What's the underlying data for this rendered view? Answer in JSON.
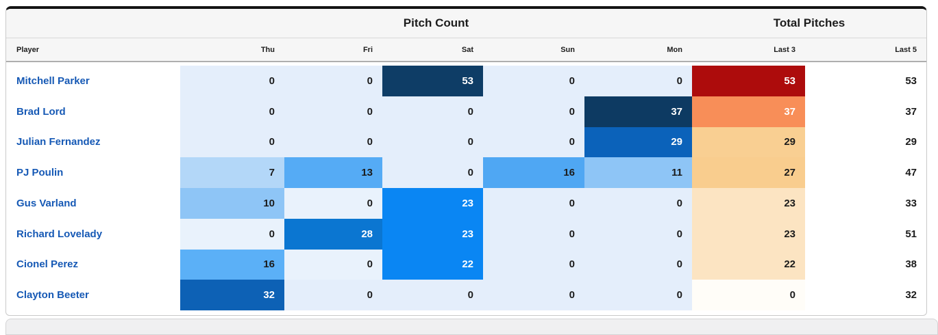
{
  "table": {
    "group_headers": {
      "pitch_count": "Pitch Count",
      "total_pitches": "Total Pitches"
    },
    "columns": [
      "Player",
      "Thu",
      "Fri",
      "Sat",
      "Sun",
      "Mon",
      "Last 3",
      "Last 5"
    ],
    "colors": {
      "zero_blue": "#e4eefb",
      "dark_navy": "#0d3c64",
      "bright_blue": "#0a86f3",
      "dark_red": "#ad0c0c",
      "orange": "#f88e58",
      "peach": "#f9cf92",
      "light_peach": "#fce4c2",
      "near_white": "#fffdf8",
      "link_blue": "#1659b5"
    },
    "rows": [
      {
        "player": "Mitchell Parker",
        "cells": [
          {
            "v": "0",
            "bg": "#e4eefb",
            "fg": "#1b1b1b"
          },
          {
            "v": "0",
            "bg": "#e4eefb",
            "fg": "#1b1b1b"
          },
          {
            "v": "53",
            "bg": "#0e3d66",
            "fg": "#ffffff"
          },
          {
            "v": "0",
            "bg": "#e4eefb",
            "fg": "#1b1b1b"
          },
          {
            "v": "0",
            "bg": "#e4eefb",
            "fg": "#1b1b1b"
          },
          {
            "v": "53",
            "bg": "#ad0c0c",
            "fg": "#ffffff"
          },
          {
            "v": "53",
            "bg": "transparent",
            "fg": "#1b1b1b"
          }
        ]
      },
      {
        "player": "Brad Lord",
        "cells": [
          {
            "v": "0",
            "bg": "#e4eefb",
            "fg": "#1b1b1b"
          },
          {
            "v": "0",
            "bg": "#e4eefb",
            "fg": "#1b1b1b"
          },
          {
            "v": "0",
            "bg": "#e4eefb",
            "fg": "#1b1b1b"
          },
          {
            "v": "0",
            "bg": "#e4eefb",
            "fg": "#1b1b1b"
          },
          {
            "v": "37",
            "bg": "#0d3a62",
            "fg": "#ffffff"
          },
          {
            "v": "37",
            "bg": "#f88e58",
            "fg": "#ffffff"
          },
          {
            "v": "37",
            "bg": "transparent",
            "fg": "#1b1b1b"
          }
        ]
      },
      {
        "player": "Julian Fernandez",
        "cells": [
          {
            "v": "0",
            "bg": "#e4eefb",
            "fg": "#1b1b1b"
          },
          {
            "v": "0",
            "bg": "#e4eefb",
            "fg": "#1b1b1b"
          },
          {
            "v": "0",
            "bg": "#e4eefb",
            "fg": "#1b1b1b"
          },
          {
            "v": "0",
            "bg": "#e4eefb",
            "fg": "#1b1b1b"
          },
          {
            "v": "29",
            "bg": "#0b62ba",
            "fg": "#ffffff"
          },
          {
            "v": "29",
            "bg": "#f9cf92",
            "fg": "#1b1b1b"
          },
          {
            "v": "29",
            "bg": "transparent",
            "fg": "#1b1b1b"
          }
        ]
      },
      {
        "player": "PJ Poulin",
        "cells": [
          {
            "v": "7",
            "bg": "#b3d7f8",
            "fg": "#1b1b1b"
          },
          {
            "v": "13",
            "bg": "#55abf5",
            "fg": "#1b1b1b"
          },
          {
            "v": "0",
            "bg": "#e4eefb",
            "fg": "#1b1b1b"
          },
          {
            "v": "16",
            "bg": "#4fa7f3",
            "fg": "#1b1b1b"
          },
          {
            "v": "11",
            "bg": "#8ec5f6",
            "fg": "#1b1b1b"
          },
          {
            "v": "27",
            "bg": "#f9cd8e",
            "fg": "#1b1b1b"
          },
          {
            "v": "47",
            "bg": "transparent",
            "fg": "#1b1b1b"
          }
        ]
      },
      {
        "player": "Gus Varland",
        "cells": [
          {
            "v": "10",
            "bg": "#8ec5f6",
            "fg": "#1b1b1b"
          },
          {
            "v": "0",
            "bg": "#e9f2fc",
            "fg": "#1b1b1b"
          },
          {
            "v": "23",
            "bg": "#0a86f3",
            "fg": "#ffffff"
          },
          {
            "v": "0",
            "bg": "#e4eefb",
            "fg": "#1b1b1b"
          },
          {
            "v": "0",
            "bg": "#e4eefb",
            "fg": "#1b1b1b"
          },
          {
            "v": "23",
            "bg": "#fce4c2",
            "fg": "#1b1b1b"
          },
          {
            "v": "33",
            "bg": "transparent",
            "fg": "#1b1b1b"
          }
        ]
      },
      {
        "player": "Richard Lovelady",
        "cells": [
          {
            "v": "0",
            "bg": "#e9f2fc",
            "fg": "#1b1b1b"
          },
          {
            "v": "28",
            "bg": "#0b76d1",
            "fg": "#ffffff"
          },
          {
            "v": "23",
            "bg": "#0a86f3",
            "fg": "#ffffff"
          },
          {
            "v": "0",
            "bg": "#e4eefb",
            "fg": "#1b1b1b"
          },
          {
            "v": "0",
            "bg": "#e4eefb",
            "fg": "#1b1b1b"
          },
          {
            "v": "23",
            "bg": "#fce4c2",
            "fg": "#1b1b1b"
          },
          {
            "v": "51",
            "bg": "transparent",
            "fg": "#1b1b1b"
          }
        ]
      },
      {
        "player": "Cionel Perez",
        "cells": [
          {
            "v": "16",
            "bg": "#5bb0f7",
            "fg": "#1b1b1b"
          },
          {
            "v": "0",
            "bg": "#e9f2fc",
            "fg": "#1b1b1b"
          },
          {
            "v": "22",
            "bg": "#0a86f3",
            "fg": "#ffffff"
          },
          {
            "v": "0",
            "bg": "#e4eefb",
            "fg": "#1b1b1b"
          },
          {
            "v": "0",
            "bg": "#e4eefb",
            "fg": "#1b1b1b"
          },
          {
            "v": "22",
            "bg": "#fce4c2",
            "fg": "#1b1b1b"
          },
          {
            "v": "38",
            "bg": "transparent",
            "fg": "#1b1b1b"
          }
        ]
      },
      {
        "player": "Clayton Beeter",
        "cells": [
          {
            "v": "32",
            "bg": "#0d61b5",
            "fg": "#ffffff"
          },
          {
            "v": "0",
            "bg": "#e4eefb",
            "fg": "#1b1b1b"
          },
          {
            "v": "0",
            "bg": "#e4eefb",
            "fg": "#1b1b1b"
          },
          {
            "v": "0",
            "bg": "#e4eefb",
            "fg": "#1b1b1b"
          },
          {
            "v": "0",
            "bg": "#e4eefb",
            "fg": "#1b1b1b"
          },
          {
            "v": "0",
            "bg": "#fffdf8",
            "fg": "#1b1b1b"
          },
          {
            "v": "32",
            "bg": "transparent",
            "fg": "#1b1b1b"
          }
        ]
      }
    ]
  }
}
